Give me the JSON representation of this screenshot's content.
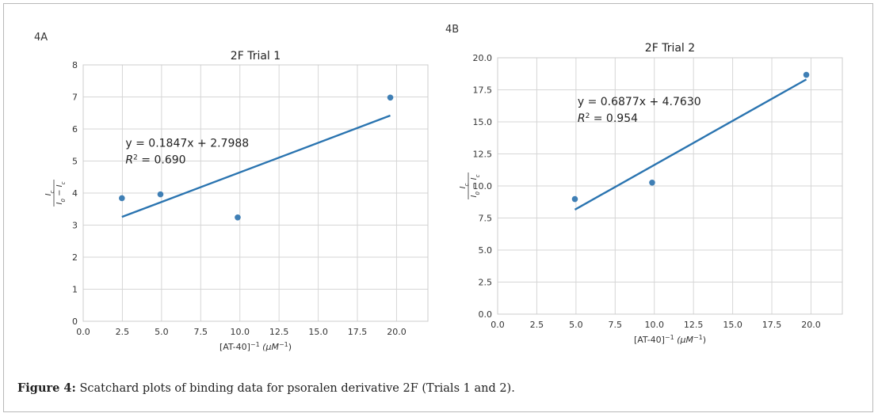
{
  "panels": [
    {
      "label": "4A"
    },
    {
      "label": "4B"
    }
  ],
  "caption": {
    "bold": "Figure 4:",
    "text": " Scatchard plots of binding data for psoralen derivative 2F (Trials 1 and 2)."
  },
  "chart_data": [
    {
      "type": "scatter",
      "title": "2F Trial 1",
      "xlabel": "[AT-40]",
      "xlabel_exponent": "−1",
      "xlabel_unit": "(μM",
      "xlabel_unit_exponent": "−1",
      "xlabel_close": ")",
      "ylabel_num": "I",
      "ylabel_num_sub": "c",
      "ylabel_den": "I",
      "ylabel_den_sub0": "0",
      "ylabel_den_minus": " − I",
      "ylabel_den_sub1": "c",
      "xlim": [
        0,
        22
      ],
      "ylim": [
        0,
        8
      ],
      "xticks": [
        0,
        2.5,
        5,
        7.5,
        10,
        12.5,
        15,
        17.5,
        20
      ],
      "xtick_labels": [
        "0.0",
        "2.5",
        "5.0",
        "7.5",
        "10.0",
        "12.5",
        "15.0",
        "17.5",
        "20.0"
      ],
      "yticks": [
        0,
        1,
        2,
        3,
        4,
        5,
        6,
        7,
        8
      ],
      "ytick_labels": [
        "0",
        "1",
        "2",
        "3",
        "4",
        "5",
        "6",
        "7",
        "8"
      ],
      "grid": true,
      "points": [
        {
          "x": 2.47,
          "y": 3.84
        },
        {
          "x": 4.93,
          "y": 3.96
        },
        {
          "x": 9.86,
          "y": 3.24
        },
        {
          "x": 19.6,
          "y": 6.98
        }
      ],
      "fit": {
        "slope": 0.1847,
        "intercept": 2.7988,
        "x_range": [
          2.47,
          19.6
        ]
      },
      "equation": {
        "prefix": "y = 0.1847x + 2.7988",
        "r2_label": "R",
        "r2_exp": "2",
        "r2_value": " = 0.690"
      },
      "equation_anchor_data": [
        2.7,
        5.45
      ],
      "colors": {
        "point": "#3f7fb5",
        "line": "#2a74b0",
        "grid": "#d6d6d6"
      }
    },
    {
      "type": "scatter",
      "title": "2F Trial 2",
      "xlabel": "[AT-40]",
      "xlabel_exponent": "−1",
      "xlabel_unit": "(μM",
      "xlabel_unit_exponent": "−1",
      "xlabel_close": ")",
      "ylabel_num": "I",
      "ylabel_num_sub": "c",
      "ylabel_den": "I",
      "ylabel_den_sub0": "0",
      "ylabel_den_minus": " − I",
      "ylabel_den_sub1": "c",
      "xlim": [
        0,
        22
      ],
      "ylim": [
        0,
        20
      ],
      "xticks": [
        0,
        2.5,
        5,
        7.5,
        10,
        12.5,
        15,
        17.5,
        20
      ],
      "xtick_labels": [
        "0.0",
        "2.5",
        "5.0",
        "7.5",
        "10.0",
        "12.5",
        "15.0",
        "17.5",
        "20.0"
      ],
      "yticks": [
        0,
        2.5,
        5,
        7.5,
        10,
        12.5,
        15,
        17.5,
        20
      ],
      "ytick_labels": [
        "0.0",
        "2.5",
        "5.0",
        "7.5",
        "10.0",
        "12.5",
        "15.0",
        "17.5",
        "20.0"
      ],
      "grid": true,
      "points": [
        {
          "x": 4.93,
          "y": 8.98
        },
        {
          "x": 9.86,
          "y": 10.26
        },
        {
          "x": 19.7,
          "y": 18.67
        }
      ],
      "fit": {
        "slope": 0.6877,
        "intercept": 4.763,
        "x_range": [
          4.93,
          19.7
        ]
      },
      "equation": {
        "prefix": "y = 0.6877x + 4.7630",
        "r2_label": "R",
        "r2_exp": "2",
        "r2_value": " = 0.954"
      },
      "equation_anchor_data": [
        5.1,
        16.3
      ],
      "colors": {
        "point": "#3f7fb5",
        "line": "#2a74b0",
        "grid": "#d6d6d6"
      }
    }
  ]
}
